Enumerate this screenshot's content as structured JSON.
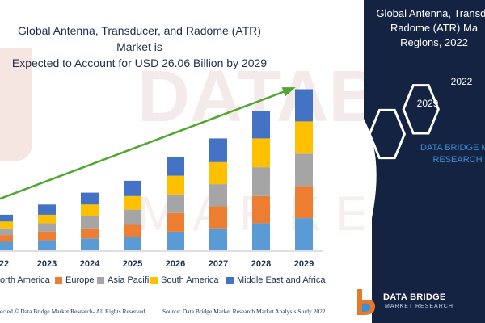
{
  "title_lines": [
    "Global Antenna, Transducer, and Radome (ATR) Market is",
    "Expected to Account for USD 26.06 Billion by 2029"
  ],
  "chart_data": {
    "type": "bar",
    "stacked": true,
    "categories": [
      "22",
      "2023",
      "2024",
      "2025",
      "2026",
      "2027",
      "2028",
      "2029"
    ],
    "series": [
      {
        "name": "North America",
        "legend_label": "orth America",
        "color": "#5b9bd5",
        "values": [
          5,
          6,
          7,
          8,
          11,
          13,
          16,
          19
        ]
      },
      {
        "name": "Europe",
        "color": "#ed7d31",
        "values": [
          4,
          5,
          6,
          7,
          11,
          13,
          16,
          19
        ]
      },
      {
        "name": "Asia Pacific",
        "color": "#a5a5a5",
        "values": [
          4,
          5,
          7,
          9,
          11,
          13,
          17,
          19
        ]
      },
      {
        "name": "South America",
        "color": "#ffc000",
        "values": [
          4,
          5,
          7,
          8,
          11,
          13,
          17,
          19
        ]
      },
      {
        "name": "Middle East and Africa",
        "color": "#4472c4",
        "values": [
          4,
          6,
          7,
          9,
          11,
          14,
          16,
          19
        ]
      }
    ],
    "ylim": [
      0,
      100
    ],
    "grid": false,
    "legend_position": "bottom",
    "trend_arrow": {
      "color": "#4ea72e",
      "from_category": "22",
      "to_category": "2029"
    },
    "xlabel": "",
    "ylabel": ""
  },
  "right_panel": {
    "title_lines": [
      "Global Antenna, Transdu",
      "Radome (ATR) Ma",
      "Regions, 2022"
    ],
    "hex_badges": [
      "2022",
      "2029"
    ],
    "watermark_lines": [
      "DATA BRIDGE MA",
      "RESEARCH"
    ],
    "background": "#142341",
    "hex_stroke": "#ffffff"
  },
  "watermark": {
    "letters": "DATA BRIDGE"
  },
  "footer": {
    "copyright": "ected © Data Bridge Market Research- All Rights Reserved.",
    "source": "Source: Data Bridge Market Research Market Analysis Study 2022"
  },
  "logo": {
    "name": "DATA BRIDGE",
    "tagline": "MARKET RESEARCH",
    "icon": "db-logo-icon"
  }
}
